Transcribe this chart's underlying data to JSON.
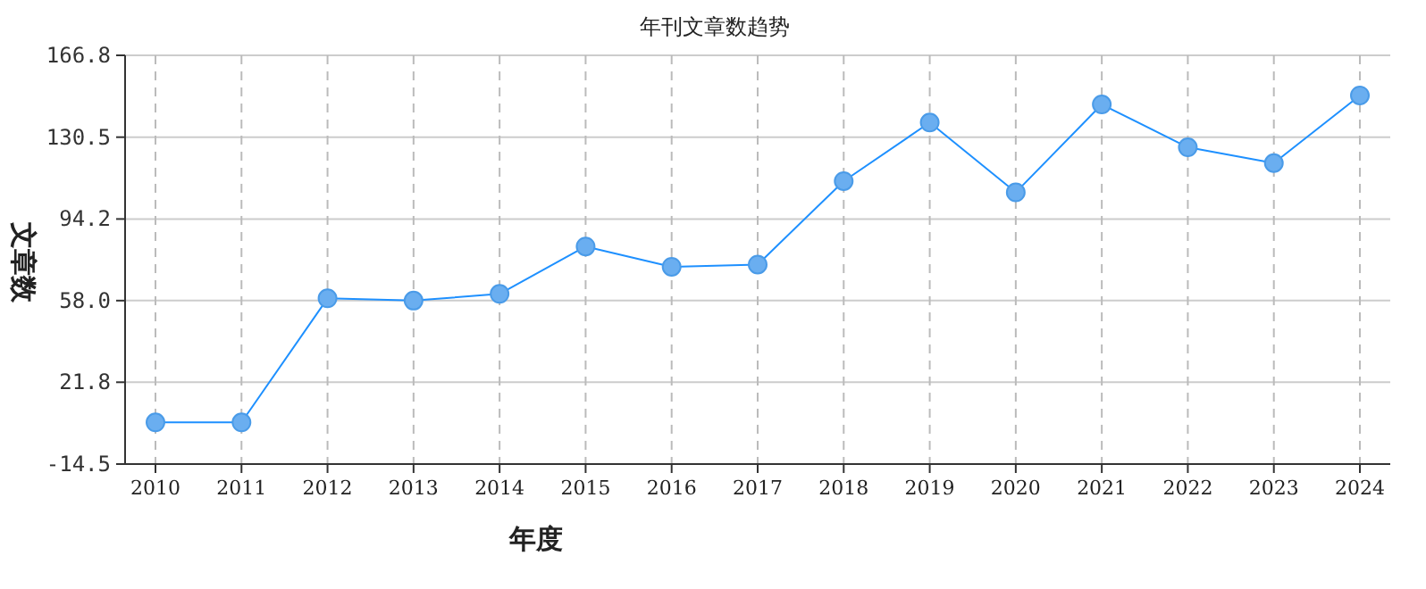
{
  "chart_data": {
    "type": "line",
    "title": "年刊文章数趋势",
    "xlabel": "年度",
    "ylabel": "文章数",
    "categories": [
      "2010",
      "2011",
      "2012",
      "2013",
      "2014",
      "2015",
      "2016",
      "2017",
      "2018",
      "2019",
      "2020",
      "2021",
      "2022",
      "2023",
      "2024"
    ],
    "series": [
      {
        "color": "#1e90ff",
        "values": [
          4,
          4,
          59,
          58,
          61,
          82,
          73,
          74,
          111,
          137,
          106,
          145,
          126,
          119,
          149
        ]
      }
    ],
    "ylim": [
      -14.5,
      166.8
    ],
    "yticks": [
      -14.5,
      21.8,
      {
        "value": 58,
        "label": "58.0"
      },
      {
        "value": 94.2,
        "label": "94.2"
      },
      130.5,
      166.8
    ],
    "grid": true,
    "marker": "circle",
    "line_style": "solid"
  }
}
